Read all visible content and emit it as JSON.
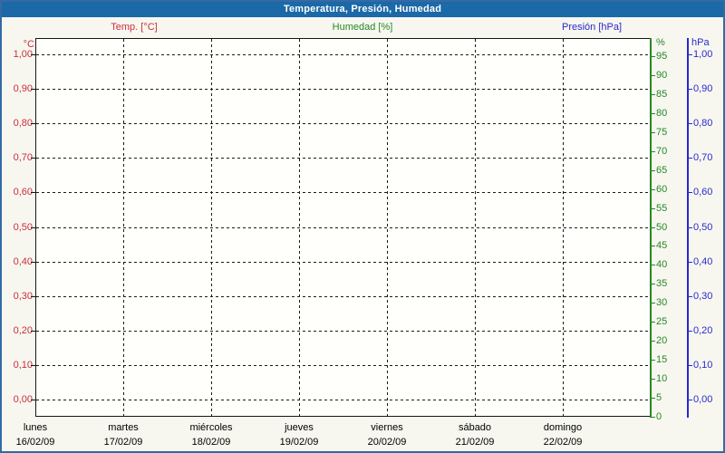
{
  "titlebar": {
    "title": "Temperatura, Presión, Humedad"
  },
  "colors": {
    "titlebar_bg": "#1b69a7",
    "titlebar_text": "#ffffff",
    "frame_border": "#3569a6",
    "page_bg": "#f7f7f0",
    "plot_bg": "#fffffc",
    "grid": "#1a1a1a",
    "axis_black": "#151515",
    "temp": "#cd2d3d",
    "humidity": "#278727",
    "pressure": "#2929cd",
    "day_text": "#000000"
  },
  "chart_data": {
    "type": "line",
    "title": "Temperatura, Presión, Humedad",
    "grid": true,
    "legend_position": "top",
    "axes": {
      "temperature": {
        "title": "Temp. [°C]",
        "unit": "°C",
        "side": "left",
        "color": "#cd2d3d",
        "range": [
          0.0,
          1.0
        ],
        "ticks": [
          "1,00",
          "0,90",
          "0,80",
          "0,70",
          "0,60",
          "0,50",
          "0,40",
          "0,30",
          "0,20",
          "0,10",
          "0,00"
        ]
      },
      "humidity": {
        "title": "Humedad [%]",
        "unit": "%",
        "side": "right-inner",
        "color": "#278727",
        "range": [
          0,
          95
        ],
        "ticks": [
          "95",
          "90",
          "85",
          "80",
          "75",
          "70",
          "65",
          "60",
          "55",
          "50",
          "45",
          "40",
          "35",
          "30",
          "25",
          "20",
          "15",
          "10",
          "5",
          "0"
        ]
      },
      "pressure": {
        "title": "Presión [hPa]",
        "unit": "hPa",
        "side": "right-outer",
        "color": "#2929cd",
        "range": [
          0.0,
          1.0
        ],
        "ticks": [
          "1,00",
          "0,90",
          "0,80",
          "0,70",
          "0,60",
          "0,50",
          "0,40",
          "0,30",
          "0,20",
          "0,10",
          "0,00"
        ]
      },
      "x": {
        "days": [
          {
            "name": "lunes",
            "date": "16/02/09"
          },
          {
            "name": "martes",
            "date": "17/02/09"
          },
          {
            "name": "miércoles",
            "date": "18/02/09"
          },
          {
            "name": "jueves",
            "date": "19/02/09"
          },
          {
            "name": "viernes",
            "date": "20/02/09"
          },
          {
            "name": "sábado",
            "date": "21/02/09"
          },
          {
            "name": "domingo",
            "date": "22/02/09"
          }
        ]
      }
    },
    "series": [
      {
        "name": "Temp. [°C]",
        "axis": "temperature",
        "color": "#cd2d3d",
        "values": []
      },
      {
        "name": "Humedad [%]",
        "axis": "humidity",
        "color": "#278727",
        "values": []
      },
      {
        "name": "Presión [hPa]",
        "axis": "pressure",
        "color": "#2929cd",
        "values": []
      }
    ]
  }
}
